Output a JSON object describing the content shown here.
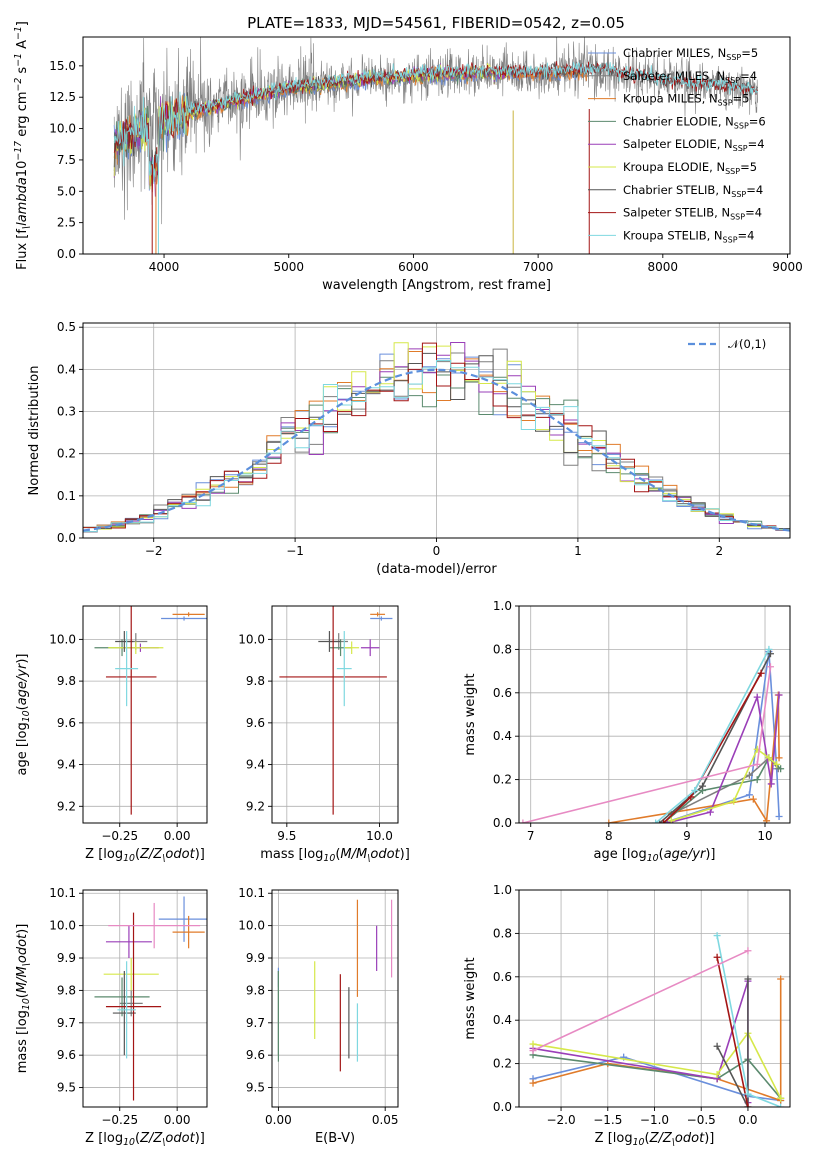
{
  "figure": {
    "title": "PLATE=1833, MJD=54561, FIBERID=0542, z=0.05"
  },
  "colors": {
    "Chabrier MILES": "#6a8fdc",
    "Salpeter MILES": "#7f7f7f",
    "Kroupa MILES": "#e07b2a",
    "Chabrier ELODIE": "#5b8a6e",
    "Salpeter ELODIE": "#9a3fb8",
    "Kroupa ELODIE": "#d6e84a",
    "Chabrier STELIB": "#555555",
    "Salpeter STELIB": "#a31515",
    "Kroupa STELIB": "#7fd8e0",
    "normal": "#5b8fdc",
    "grid": "#b0b0b0"
  },
  "chart_data": [
    {
      "id": "spectrum",
      "type": "line",
      "xlabel": "wavelength [Angstrom, rest frame]",
      "ylabel": "Flux [f$_\\lambda$10$^{-17}$ erg cm$^{-2}$ s$^{-1}$ A$^{-1}$]",
      "xlim": [
        3350,
        9020
      ],
      "ylim": [
        0,
        17.3
      ],
      "xticks": [
        4000,
        5000,
        6000,
        7000,
        8000,
        9000
      ],
      "yticks": [
        0.0,
        2.5,
        5.0,
        7.5,
        10.0,
        12.5,
        15.0
      ],
      "grid": false,
      "legend_position": "right",
      "legend": [
        {
          "model": "Chabrier MILES",
          "label": "Chabrier MILES, N",
          "sub": "SSP",
          "suffix": "=5"
        },
        {
          "model": "Salpeter MILES",
          "label": "Salpeter MILES, N",
          "sub": "SSP",
          "suffix": "=4"
        },
        {
          "model": "Kroupa MILES",
          "label": "Kroupa MILES, N",
          "sub": "SSP",
          "suffix": "=5"
        },
        {
          "model": "Chabrier ELODIE",
          "label": "Chabrier ELODIE, N",
          "sub": "SSP",
          "suffix": "=6"
        },
        {
          "model": "Salpeter ELODIE",
          "label": "Salpeter ELODIE, N",
          "sub": "SSP",
          "suffix": "=4"
        },
        {
          "model": "Kroupa ELODIE",
          "label": "Kroupa ELODIE, N",
          "sub": "SSP",
          "suffix": "=5"
        },
        {
          "model": "Chabrier STELIB",
          "label": "Chabrier STELIB, N",
          "sub": "SSP",
          "suffix": "=4"
        },
        {
          "model": "Salpeter STELIB",
          "label": "Salpeter STELIB, N",
          "sub": "SSP",
          "suffix": "=4"
        },
        {
          "model": "Kroupa STELIB",
          "label": "Kroupa STELIB, N",
          "sub": "SSP",
          "suffix": "=4"
        }
      ],
      "continuum": [
        [
          3600,
          8.8
        ],
        [
          3800,
          9.8
        ],
        [
          4000,
          10.5
        ],
        [
          4300,
          11.5
        ],
        [
          4700,
          12.5
        ],
        [
          5000,
          13.2
        ],
        [
          5500,
          13.8
        ],
        [
          6000,
          14.2
        ],
        [
          6500,
          14.5
        ],
        [
          7000,
          14.4
        ],
        [
          7500,
          14.6
        ],
        [
          8000,
          13.8
        ],
        [
          8500,
          13.3
        ],
        [
          8750,
          13.0
        ]
      ],
      "data_range": [
        3600,
        8760
      ],
      "model_ranges": {
        "Chabrier MILES": [
          3600,
          7400
        ],
        "Salpeter MILES": [
          3600,
          7400
        ],
        "Kroupa MILES": [
          3600,
          7400
        ],
        "Chabrier ELODIE": [
          3600,
          6800
        ],
        "Salpeter ELODIE": [
          3600,
          6800
        ],
        "Kroupa ELODIE": [
          3600,
          6800
        ],
        "Chabrier STELIB": [
          3600,
          8760
        ],
        "Salpeter STELIB": [
          3600,
          8760
        ],
        "Kroupa STELIB": [
          3600,
          8760
        ]
      }
    },
    {
      "id": "residual-hist",
      "type": "line",
      "xlabel": "(data-model)/error",
      "ylabel": "Normed distribution",
      "xlim": [
        -2.5,
        2.5
      ],
      "ylim": [
        0,
        0.51
      ],
      "xticks": [
        -2,
        -1,
        0,
        1,
        2
      ],
      "yticks": [
        0.0,
        0.1,
        0.2,
        0.3,
        0.4,
        0.5
      ],
      "grid": true,
      "legend_position": "top-right",
      "legend": [
        {
          "label": "$\\mathcal{N}(0,1)$",
          "style": "dashed"
        }
      ],
      "bin_width": 0.1
    },
    {
      "id": "age-vs-Z",
      "type": "scatter",
      "xlabel": "Z [log$_{10}$($Z/Z_\\odot$)]",
      "ylabel": "age  [log$_{10}$($age/yr$)]",
      "xlim": [
        -0.41,
        0.13
      ],
      "ylim": [
        9.12,
        10.16
      ],
      "xticks": [
        -0.25,
        0.0
      ],
      "yticks": [
        9.2,
        9.4,
        9.6,
        9.8,
        10.0
      ],
      "grid": true,
      "points": [
        {
          "model": "Chabrier MILES",
          "x": 0.03,
          "xerr": 0.1,
          "y": 10.1,
          "yerr": 0.01
        },
        {
          "model": "Salpeter MILES",
          "x": -0.18,
          "xerr": 0.05,
          "y": 9.99,
          "yerr": 0.04
        },
        {
          "model": "Kroupa MILES",
          "x": 0.05,
          "xerr": 0.07,
          "y": 10.12,
          "yerr": 0.01
        },
        {
          "model": "Chabrier ELODIE",
          "x": -0.24,
          "xerr": 0.12,
          "y": 9.96,
          "yerr": 0.04
        },
        {
          "model": "Salpeter ELODIE",
          "x": -0.16,
          "xerr": 0.08,
          "y": 9.96,
          "yerr": 0.02
        },
        {
          "model": "Kroupa ELODIE",
          "x": -0.18,
          "xerr": 0.12,
          "y": 9.96,
          "yerr": 0.03
        },
        {
          "model": "Chabrier STELIB",
          "x": -0.23,
          "xerr": 0.04,
          "y": 9.99,
          "yerr": 0.05
        },
        {
          "model": "Salpeter STELIB",
          "x": -0.2,
          "xerr": 0.11,
          "y": 9.82,
          "yerr": 0.66
        },
        {
          "model": "Kroupa STELIB",
          "x": -0.22,
          "xerr": 0.05,
          "y": 9.86,
          "yerr": 0.18
        }
      ]
    },
    {
      "id": "age-vs-mass",
      "type": "scatter",
      "xlabel": "mass [log$_{10}$($M/M_\\odot$)]",
      "ylabel": "",
      "xlim": [
        9.42,
        10.1
      ],
      "ylim": [
        9.12,
        10.16
      ],
      "xticks": [
        9.5,
        10.0
      ],
      "yticks": [
        9.2,
        9.4,
        9.6,
        9.8,
        10.0
      ],
      "grid": true,
      "points": [
        {
          "model": "Chabrier MILES",
          "x": 10.01,
          "xerr": 0.06,
          "y": 10.1,
          "yerr": 0.01
        },
        {
          "model": "Salpeter MILES",
          "x": 9.78,
          "xerr": 0.05,
          "y": 9.99,
          "yerr": 0.04
        },
        {
          "model": "Kroupa MILES",
          "x": 9.99,
          "xerr": 0.04,
          "y": 10.12,
          "yerr": 0.01
        },
        {
          "model": "Chabrier ELODIE",
          "x": 9.79,
          "xerr": 0.06,
          "y": 9.96,
          "yerr": 0.04
        },
        {
          "model": "Salpeter ELODIE",
          "x": 9.95,
          "xerr": 0.05,
          "y": 9.96,
          "yerr": 0.04
        },
        {
          "model": "Kroupa ELODIE",
          "x": 9.85,
          "xerr": 0.04,
          "y": 9.96,
          "yerr": 0.03
        },
        {
          "model": "Chabrier STELIB",
          "x": 9.73,
          "xerr": 0.06,
          "y": 9.99,
          "yerr": 0.05
        },
        {
          "model": "Salpeter STELIB",
          "x": 9.75,
          "xerr": 0.29,
          "y": 9.82,
          "yerr": 0.66
        },
        {
          "model": "Kroupa STELIB",
          "x": 9.81,
          "xerr": 0.04,
          "y": 9.86,
          "yerr": 0.18
        }
      ]
    },
    {
      "id": "weight-vs-age",
      "type": "line",
      "xlabel": "age  [log$_{10}$($age/yr$)]",
      "ylabel": "mass weight",
      "xlim": [
        6.85,
        10.32
      ],
      "ylim": [
        0,
        1.0
      ],
      "xticks": [
        7,
        8,
        9,
        10
      ],
      "yticks": [
        0.0,
        0.2,
        0.4,
        0.6,
        0.8,
        1.0
      ],
      "grid": true,
      "series": [
        {
          "model": "Chabrier MILES",
          "x": [
            8.7,
            9.8,
            10.05,
            10.15,
            10.18
          ],
          "y": [
            0.0,
            0.13,
            0.79,
            0.25,
            0.03
          ]
        },
        {
          "model": "Salpeter MILES",
          "x": [
            8.8,
            9.8,
            10.05,
            10.17
          ],
          "y": [
            0.04,
            0.22,
            0.3,
            0.25
          ]
        },
        {
          "model": "Kroupa MILES",
          "x": [
            8.0,
            9.85,
            10.02,
            10.17,
            10.18
          ],
          "y": [
            0.0,
            0.11,
            0.01,
            0.59,
            0.3
          ]
        },
        {
          "model": "Chabrier ELODIE",
          "x": [
            8.7,
            9.2,
            9.9,
            10.05,
            10.2
          ],
          "y": [
            0.0,
            0.15,
            0.2,
            0.3,
            0.25
          ]
        },
        {
          "model": "Salpeter ELODIE",
          "x": [
            8.75,
            9.3,
            9.9,
            10.08,
            10.18
          ],
          "y": [
            0.0,
            0.05,
            0.58,
            0.18,
            0.59
          ]
        },
        {
          "model": "Kroupa ELODIE",
          "x": [
            8.8,
            9.6,
            9.9,
            10.05,
            10.15
          ],
          "y": [
            0.01,
            0.1,
            0.34,
            0.3,
            0.27
          ]
        },
        {
          "model": "Chabrier STELIB",
          "x": [
            8.65,
            9.2,
            10.07
          ],
          "y": [
            0.0,
            0.17,
            0.78
          ]
        },
        {
          "model": "Salpeter STELIB",
          "x": [
            8.7,
            9.05,
            9.95
          ],
          "y": [
            0.0,
            0.12,
            0.69
          ]
        },
        {
          "model": "Kroupa STELIB",
          "x": [
            8.6,
            9.1,
            10.05
          ],
          "y": [
            0.0,
            0.15,
            0.8
          ]
        },
        {
          "model": "pink",
          "color": "#e78ac3",
          "x": [
            6.9,
            9.9,
            10.07
          ],
          "y": [
            0.0,
            0.27,
            0.72
          ]
        }
      ]
    },
    {
      "id": "mass-vs-Z",
      "type": "scatter",
      "xlabel": "Z [log$_{10}$($Z/Z_\\odot$)]",
      "ylabel": "mass [log$_{10}$($M/M_\\odot$)]",
      "xlim": [
        -0.41,
        0.13
      ],
      "ylim": [
        9.44,
        10.11
      ],
      "xticks": [
        -0.25,
        0.0
      ],
      "yticks": [
        9.5,
        9.6,
        9.7,
        9.8,
        9.9,
        10.0,
        10.1
      ],
      "grid": true,
      "points": [
        {
          "model": "Chabrier MILES",
          "x": 0.03,
          "xerr": 0.11,
          "y": 10.02,
          "yerr": 0.07
        },
        {
          "model": "Salpeter MILES",
          "x": -0.2,
          "xerr": 0.05,
          "y": 9.76,
          "yerr": 0.04
        },
        {
          "model": "Kroupa MILES",
          "x": 0.05,
          "xerr": 0.07,
          "y": 9.98,
          "yerr": 0.05
        },
        {
          "model": "Chabrier ELODIE",
          "x": -0.24,
          "xerr": 0.12,
          "y": 9.78,
          "yerr": 0.06
        },
        {
          "model": "Salpeter ELODIE",
          "x": -0.21,
          "xerr": 0.1,
          "y": 9.95,
          "yerr": 0.05
        },
        {
          "model": "Kroupa ELODIE",
          "x": -0.2,
          "xerr": 0.12,
          "y": 9.85,
          "yerr": 0.05
        },
        {
          "model": "Chabrier STELIB",
          "x": -0.23,
          "xerr": 0.05,
          "y": 9.73,
          "yerr": 0.13
        },
        {
          "model": "Salpeter STELIB",
          "x": -0.19,
          "xerr": 0.12,
          "y": 9.75,
          "yerr": 0.29
        },
        {
          "model": "Kroupa STELIB",
          "x": -0.22,
          "xerr": 0.04,
          "y": 9.74,
          "yerr": 0.15
        },
        {
          "model": "pink",
          "color": "#e78ac3",
          "x": -0.1,
          "xerr": 0.2,
          "y": 10.0,
          "yerr": 0.07
        }
      ]
    },
    {
      "id": "mass-vs-ebv",
      "type": "scatter",
      "xlabel": "E(B-V)",
      "ylabel": "",
      "xlim": [
        -0.003,
        0.056
      ],
      "ylim": [
        9.44,
        10.11
      ],
      "xticks": [
        0.0,
        0.05
      ],
      "yticks": [
        9.5,
        9.6,
        9.7,
        9.8,
        9.9,
        10.0,
        10.1
      ],
      "grid": true,
      "points": [
        {
          "model": "Chabrier MILES",
          "x": 0.0,
          "xerr": 0.0,
          "y": 9.84,
          "yerr": 0.03
        },
        {
          "model": "Salpeter MILES",
          "x": 0.0,
          "xerr": 0.0,
          "y": 9.73,
          "yerr": 0.13
        },
        {
          "model": "Kroupa MILES",
          "x": 0.037,
          "xerr": 0.0,
          "y": 9.93,
          "yerr": 0.15
        },
        {
          "model": "Chabrier ELODIE",
          "x": 0.0,
          "xerr": 0.0,
          "y": 9.72,
          "yerr": 0.14
        },
        {
          "model": "Salpeter ELODIE",
          "x": 0.046,
          "xerr": 0.0,
          "y": 9.93,
          "yerr": 0.07
        },
        {
          "model": "Kroupa ELODIE",
          "x": 0.017,
          "xerr": 0.0,
          "y": 9.77,
          "yerr": 0.12
        },
        {
          "model": "Chabrier STELIB",
          "x": 0.033,
          "xerr": 0.0,
          "y": 9.7,
          "yerr": 0.11
        },
        {
          "model": "Salpeter STELIB",
          "x": 0.029,
          "xerr": 0.0,
          "y": 9.7,
          "yerr": 0.15
        },
        {
          "model": "Kroupa STELIB",
          "x": 0.037,
          "xerr": 0.0,
          "y": 9.67,
          "yerr": 0.09
        },
        {
          "model": "pink",
          "color": "#e78ac3",
          "x": 0.053,
          "xerr": 0.0,
          "y": 9.96,
          "yerr": 0.12
        }
      ]
    },
    {
      "id": "weight-vs-Z",
      "type": "line",
      "xlabel": "Z [log$_{10}$($Z/Z_\\odot$)]",
      "ylabel": "mass weight",
      "xlim": [
        -2.45,
        0.45
      ],
      "ylim": [
        0,
        1.0
      ],
      "xticks": [
        -2.0,
        -1.5,
        -1.0,
        -0.5,
        0.0
      ],
      "yticks": [
        0.0,
        0.2,
        0.4,
        0.6,
        0.8,
        1.0
      ],
      "grid": true,
      "series": [
        {
          "model": "Chabrier MILES",
          "x": [
            -2.3,
            -1.33,
            0.0,
            0.35
          ],
          "y": [
            0.13,
            0.23,
            0.05,
            0.03
          ]
        },
        {
          "model": "Kroupa MILES",
          "x": [
            -2.3,
            -1.5,
            -0.33,
            0.35,
            0.35
          ],
          "y": [
            0.11,
            0.2,
            0.13,
            0.03,
            0.59
          ]
        },
        {
          "model": "Chabrier ELODIE",
          "x": [
            -2.3,
            -0.33,
            0.0,
            0.35
          ],
          "y": [
            0.24,
            0.13,
            0.22,
            0.04
          ]
        },
        {
          "model": "Salpeter ELODIE",
          "x": [
            -2.3,
            -0.33,
            0.0,
            0.0
          ],
          "y": [
            0.27,
            0.13,
            0.58,
            0.02
          ]
        },
        {
          "model": "Kroupa ELODIE",
          "x": [
            -2.3,
            -0.33,
            0.0,
            0.35
          ],
          "y": [
            0.29,
            0.15,
            0.34,
            0.04
          ]
        },
        {
          "model": "Chabrier STELIB",
          "x": [
            -0.33,
            0.0,
            0.0
          ],
          "y": [
            0.28,
            0.0,
            0.59
          ]
        },
        {
          "model": "Salpeter STELIB",
          "x": [
            -0.33,
            0.0
          ],
          "y": [
            0.69,
            0.0
          ]
        },
        {
          "model": "Kroupa STELIB",
          "x": [
            -0.33,
            0.0,
            0.35
          ],
          "y": [
            0.79,
            0.06,
            0.0
          ]
        },
        {
          "model": "pink",
          "color": "#e78ac3",
          "x": [
            -2.3,
            0.0
          ],
          "y": [
            0.26,
            0.72
          ]
        }
      ]
    }
  ]
}
